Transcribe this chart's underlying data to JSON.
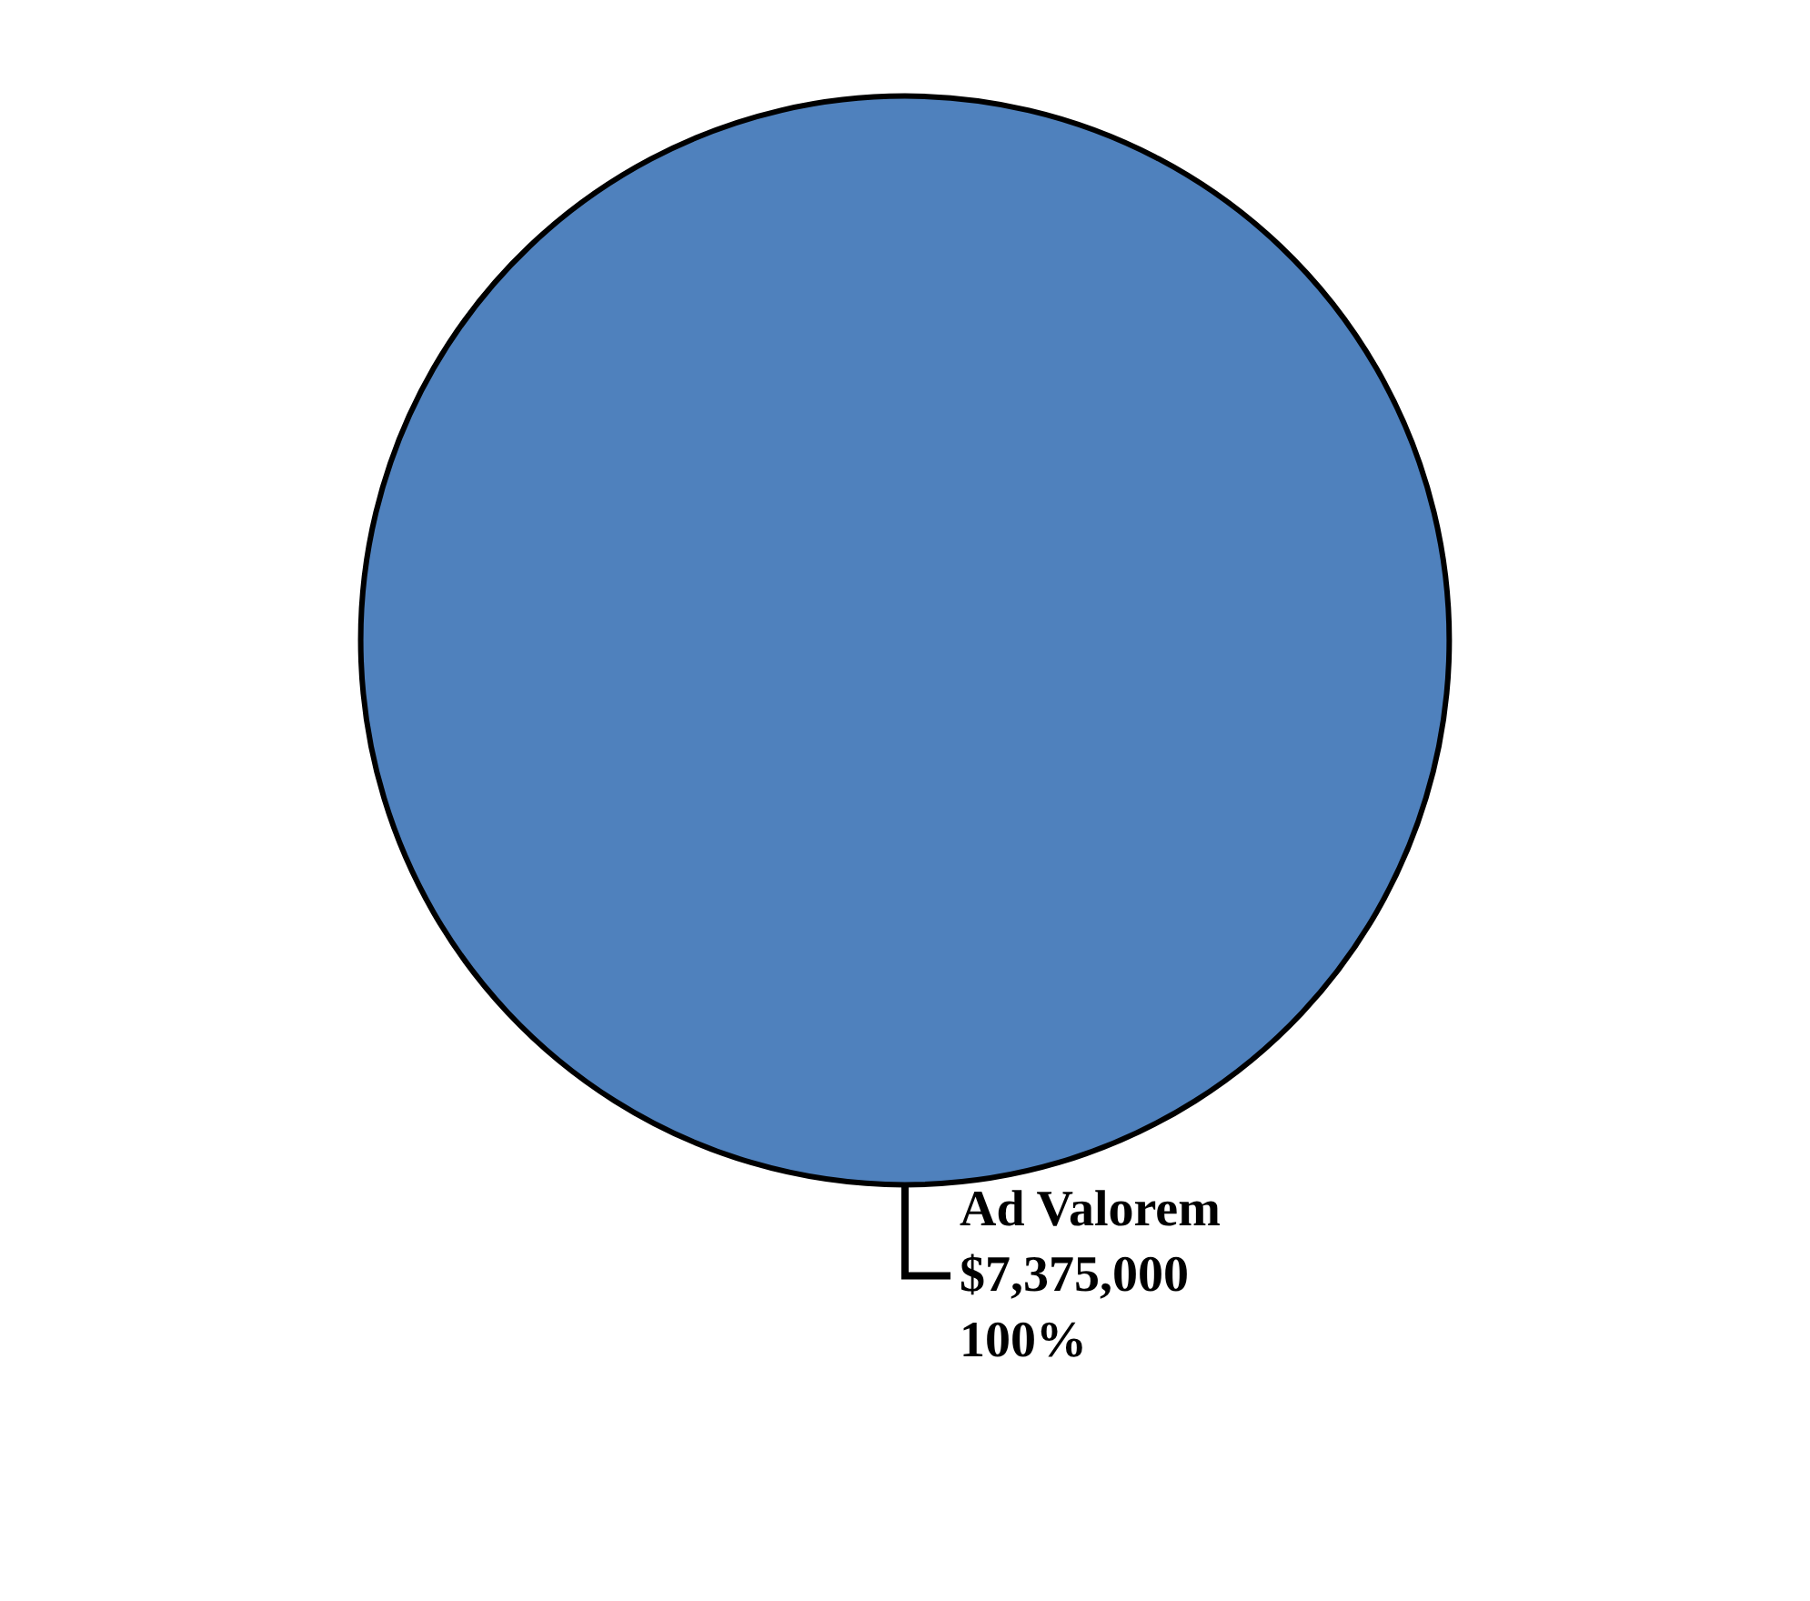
{
  "chart_data": {
    "type": "pie",
    "categories": [
      "Ad Valorem"
    ],
    "values": [
      7375000
    ],
    "colors": [
      "#4f81bd"
    ],
    "value_labels": [
      "$7,375,000\n100%"
    ]
  }
}
